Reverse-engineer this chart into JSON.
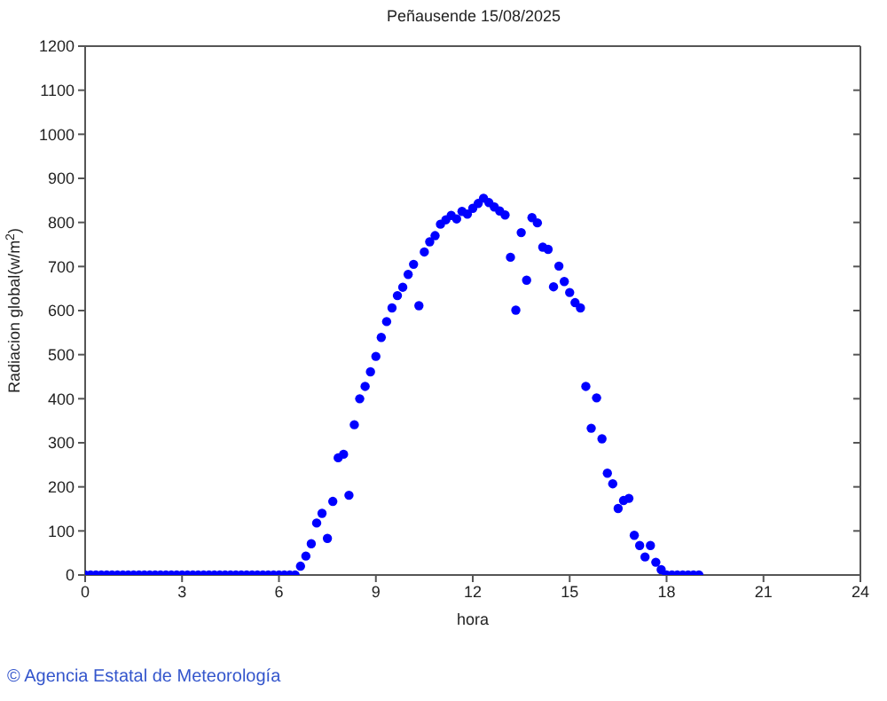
{
  "chart_data": {
    "type": "scatter",
    "title": "Peñausende 15/08/2025",
    "xlabel": "hora",
    "ylabel": "Radiacion global(w/m$^{2}$)",
    "annotations": [
      "© Agencia Estatal de Meteorología"
    ],
    "x": [
      0,
      0.167,
      0.333,
      0.5,
      0.667,
      0.833,
      1,
      1.167,
      1.333,
      1.5,
      1.667,
      1.833,
      2,
      2.167,
      2.333,
      2.5,
      2.667,
      2.833,
      3,
      3.167,
      3.333,
      3.5,
      3.667,
      3.833,
      4,
      4.167,
      4.333,
      4.5,
      4.667,
      4.833,
      5,
      5.167,
      5.333,
      5.5,
      5.667,
      5.833,
      6,
      6.167,
      6.333,
      6.5,
      6.667,
      6.833,
      7,
      7.167,
      7.333,
      7.5,
      7.667,
      7.833,
      8,
      8.167,
      8.333,
      8.5,
      8.667,
      8.833,
      9,
      9.167,
      9.333,
      9.5,
      9.667,
      9.833,
      10,
      10.167,
      10.333,
      10.5,
      10.667,
      10.833,
      11,
      11.167,
      11.333,
      11.5,
      11.667,
      11.833,
      12,
      12.167,
      12.333,
      12.5,
      12.667,
      12.833,
      13,
      13.167,
      13.333,
      13.5,
      13.667,
      13.833,
      14,
      14.167,
      14.333,
      14.5,
      14.667,
      14.833,
      15,
      15.167,
      15.333,
      15.5,
      15.667,
      15.833,
      16,
      16.167,
      16.333,
      16.5,
      16.667,
      16.833,
      17,
      17.167,
      17.333,
      17.5,
      17.667,
      17.833,
      18,
      18.167,
      18.333,
      18.5,
      18.667,
      18.833,
      19
    ],
    "series": [
      {
        "color": "#0000ff",
        "values": [
          0,
          0,
          0,
          0,
          0,
          0,
          0,
          0,
          0,
          0,
          0,
          0,
          0,
          0,
          0,
          0,
          0,
          0,
          0,
          0,
          0,
          0,
          0,
          0,
          0,
          0,
          0,
          0,
          0,
          0,
          0,
          0,
          0,
          0,
          0,
          0,
          0,
          0,
          0,
          0,
          20,
          43,
          71,
          118,
          140,
          83,
          167,
          266,
          274,
          181,
          341,
          400,
          428,
          461,
          496,
          539,
          575,
          606,
          634,
          653,
          682,
          705,
          611,
          733,
          756,
          770,
          796,
          806,
          816,
          808,
          825,
          819,
          832,
          843,
          855,
          845,
          835,
          826,
          817,
          721,
          601,
          777,
          669,
          811,
          799,
          744,
          739,
          654,
          701,
          666,
          641,
          618,
          606,
          428,
          333,
          402,
          309,
          231,
          207,
          151,
          169,
          174,
          90,
          67,
          41,
          67,
          29,
          12,
          0,
          0,
          0,
          0,
          0,
          0,
          0
        ]
      }
    ],
    "xlim": [
      0,
      24
    ],
    "xticks": [
      0,
      3,
      6,
      9,
      12,
      15,
      18,
      21,
      24
    ],
    "ylim": [
      0,
      1200
    ],
    "yticks": [
      0,
      100,
      200,
      300,
      400,
      500,
      600,
      700,
      800,
      900,
      1000,
      1100,
      1200
    ],
    "grid": false,
    "marker": "circle"
  }
}
